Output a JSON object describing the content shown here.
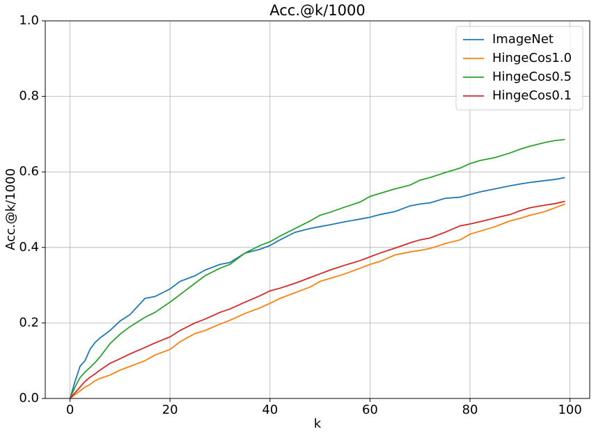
{
  "chart_data": {
    "type": "line",
    "title": "Acc.@k/1000",
    "x_label": "k",
    "y_label": "Acc.@k/1000",
    "x": [
      0,
      1,
      2,
      3,
      4,
      5,
      6,
      8,
      10,
      12,
      15,
      17,
      20,
      22,
      25,
      27,
      30,
      32,
      35,
      38,
      40,
      42,
      45,
      48,
      50,
      52,
      55,
      58,
      60,
      62,
      65,
      68,
      70,
      72,
      75,
      78,
      80,
      82,
      85,
      88,
      90,
      92,
      95,
      97,
      99
    ],
    "series": [
      {
        "name": "ImageNet",
        "color": "#1f77b4",
        "values": [
          0,
          0.045,
          0.085,
          0.1,
          0.13,
          0.148,
          0.16,
          0.18,
          0.205,
          0.222,
          0.265,
          0.27,
          0.29,
          0.31,
          0.325,
          0.34,
          0.355,
          0.36,
          0.385,
          0.395,
          0.405,
          0.42,
          0.44,
          0.45,
          0.455,
          0.46,
          0.468,
          0.475,
          0.48,
          0.487,
          0.495,
          0.51,
          0.515,
          0.518,
          0.53,
          0.533,
          0.54,
          0.547,
          0.555,
          0.563,
          0.568,
          0.572,
          0.577,
          0.58,
          0.585
        ]
      },
      {
        "name": "HingeCos1.0",
        "color": "#ff7f0e",
        "values": [
          0,
          0.01,
          0.02,
          0.03,
          0.037,
          0.047,
          0.053,
          0.062,
          0.075,
          0.085,
          0.1,
          0.115,
          0.13,
          0.15,
          0.172,
          0.18,
          0.197,
          0.207,
          0.225,
          0.24,
          0.252,
          0.265,
          0.28,
          0.295,
          0.31,
          0.318,
          0.33,
          0.345,
          0.355,
          0.363,
          0.38,
          0.388,
          0.392,
          0.397,
          0.41,
          0.42,
          0.435,
          0.443,
          0.455,
          0.47,
          0.477,
          0.485,
          0.495,
          0.505,
          0.515
        ]
      },
      {
        "name": "HingeCos0.5",
        "color": "#2ca02c",
        "values": [
          0,
          0.03,
          0.055,
          0.07,
          0.082,
          0.095,
          0.11,
          0.145,
          0.17,
          0.19,
          0.215,
          0.228,
          0.255,
          0.275,
          0.305,
          0.325,
          0.345,
          0.355,
          0.385,
          0.405,
          0.415,
          0.43,
          0.45,
          0.47,
          0.485,
          0.493,
          0.507,
          0.52,
          0.535,
          0.543,
          0.555,
          0.565,
          0.578,
          0.585,
          0.598,
          0.61,
          0.622,
          0.63,
          0.638,
          0.65,
          0.66,
          0.668,
          0.678,
          0.683,
          0.686
        ]
      },
      {
        "name": "HingeCos0.1",
        "color": "#d62728",
        "values": [
          0,
          0.015,
          0.03,
          0.045,
          0.056,
          0.065,
          0.075,
          0.093,
          0.105,
          0.118,
          0.135,
          0.147,
          0.163,
          0.18,
          0.2,
          0.21,
          0.228,
          0.237,
          0.255,
          0.272,
          0.285,
          0.292,
          0.305,
          0.32,
          0.33,
          0.34,
          0.353,
          0.365,
          0.375,
          0.385,
          0.398,
          0.412,
          0.42,
          0.425,
          0.44,
          0.457,
          0.462,
          0.468,
          0.478,
          0.487,
          0.497,
          0.505,
          0.512,
          0.516,
          0.522
        ]
      }
    ],
    "xlim": [
      -4.95,
      103.95
    ],
    "xticks": [
      0,
      20,
      40,
      60,
      80,
      100
    ],
    "ylim": [
      0,
      1
    ],
    "yticks": [
      {
        "value": 0,
        "label": "0.0"
      },
      0.2,
      0.4,
      0.6,
      0.8,
      {
        "value": 1,
        "label": "1.0"
      }
    ],
    "grid": true,
    "legend": "upper right"
  }
}
